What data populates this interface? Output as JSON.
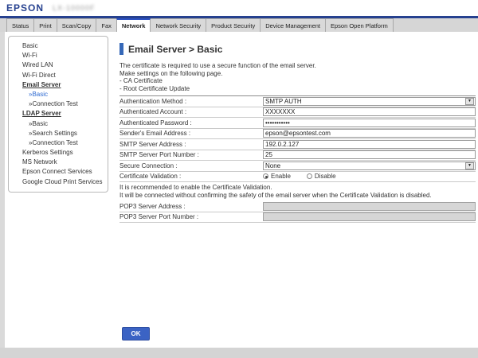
{
  "header": {
    "logo": "EPSON",
    "model": "LX-10000F"
  },
  "tabs": [
    {
      "label": "Status"
    },
    {
      "label": "Print"
    },
    {
      "label": "Scan/Copy"
    },
    {
      "label": "Fax"
    },
    {
      "label": "Network",
      "active": true
    },
    {
      "label": "Network Security"
    },
    {
      "label": "Product Security"
    },
    {
      "label": "Device Management"
    },
    {
      "label": "Epson Open Platform"
    }
  ],
  "sidebar": {
    "items": [
      {
        "label": "Basic"
      },
      {
        "label": "Wi-Fi"
      },
      {
        "label": "Wired LAN"
      },
      {
        "label": "Wi-Fi Direct"
      },
      {
        "label": "Email Server"
      },
      {
        "label": "»Basic"
      },
      {
        "label": "»Connection Test"
      },
      {
        "label": "LDAP Server"
      },
      {
        "label": "»Basic"
      },
      {
        "label": "»Search Settings"
      },
      {
        "label": "»Connection Test"
      },
      {
        "label": "Kerberos Settings"
      },
      {
        "label": "MS Network"
      },
      {
        "label": "Epson Connect Services"
      },
      {
        "label": "Google Cloud Print Services"
      }
    ]
  },
  "content": {
    "title": "Email Server > Basic",
    "description": [
      "The certificate is required to use a secure function of the email server.",
      "Make settings on the following page.",
      "- CA Certificate",
      "- Root Certificate Update"
    ],
    "form": {
      "authentication_method": {
        "label": "Authentication Method :",
        "value": "SMTP AUTH"
      },
      "authenticated_account": {
        "label": "Authenticated Account :",
        "value": "XXXXXXX"
      },
      "authenticated_password": {
        "label": "Authenticated Password :",
        "value": "•••••••••••"
      },
      "senders_email": {
        "label": "Sender's Email Address :",
        "value": "epson@epsontest.com"
      },
      "smtp_address": {
        "label": "SMTP Server Address :",
        "value": "192.0.2.127"
      },
      "smtp_port": {
        "label": "SMTP Server Port Number :",
        "value": "25"
      },
      "secure_connection": {
        "label": "Secure Connection :",
        "value": "None"
      },
      "certificate_validation": {
        "label": "Certificate Validation :",
        "options": [
          "Enable",
          "Disable"
        ],
        "selected": "Enable"
      },
      "note": [
        "It is recommended to enable the Certificate Validation.",
        "It will be connected without confirming the safety of the email server when the Certificate Validation is disabled."
      ],
      "pop3_address": {
        "label": "POP3 Server Address :",
        "value": ""
      },
      "pop3_port": {
        "label": "POP3 Server Port Number :",
        "value": ""
      }
    },
    "ok_label": "OK"
  },
  "icons": {
    "dropdown_arrow": "▼"
  },
  "colors": {
    "brand_navy": "#26418f",
    "tab_active_accent": "#2b50c0",
    "title_accent": "#3668b8",
    "selected_link": "#2e6ad1",
    "ok_button": "#3b63c4",
    "footer_gray": "#d4d4d4"
  }
}
